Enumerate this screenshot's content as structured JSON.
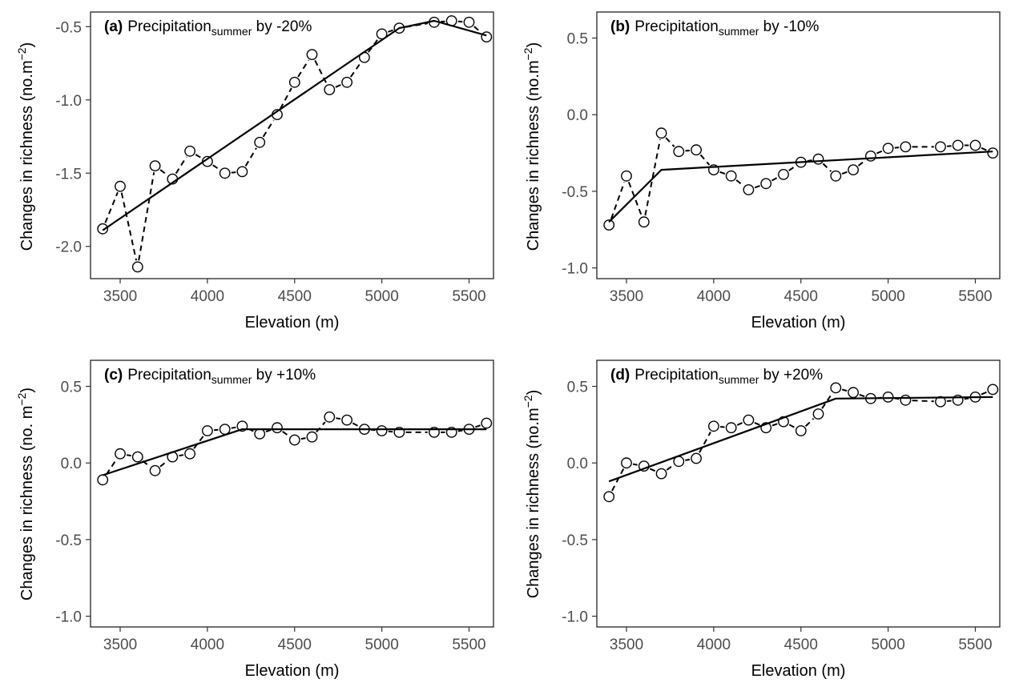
{
  "chart_data": [
    {
      "type": "line",
      "panel_label": "(a)",
      "title_main": "Precipitation",
      "title_sub": "summer",
      "title_rest": " by -20%",
      "xlabel": "Elevation (m)",
      "ylabel_main": "Changes in richness (no.m",
      "ylabel_exp": "−2",
      "ylabel_close": ")",
      "xlim": [
        3330,
        5640
      ],
      "ylim": [
        -2.22,
        -0.4
      ],
      "x_ticks": [
        3500,
        4000,
        4500,
        5000,
        5500
      ],
      "x_tick_labels": [
        "3500",
        "4000",
        "4500",
        "5000",
        "5500"
      ],
      "y_ticks": [
        -2.0,
        -1.5,
        -1.0,
        -0.5
      ],
      "y_tick_labels": [
        "-2.0",
        "-1.5",
        "-1.0",
        "-0.5"
      ],
      "grid": false,
      "series": [
        {
          "style": "points-dashed",
          "x": [
            3400,
            3500,
            3600,
            3700,
            3800,
            3900,
            4000,
            4100,
            4200,
            4300,
            4400,
            4500,
            4600,
            4700,
            4800,
            4900,
            5000,
            5100,
            5300,
            5400,
            5500,
            5600
          ],
          "y": [
            -1.88,
            -1.59,
            -2.14,
            -1.45,
            -1.54,
            -1.35,
            -1.42,
            -1.5,
            -1.49,
            -1.29,
            -1.1,
            -0.88,
            -0.69,
            -0.93,
            -0.88,
            -0.71,
            -0.55,
            -0.51,
            -0.47,
            -0.46,
            -0.47,
            -0.57
          ]
        },
        {
          "style": "solid-fit",
          "x": [
            3400,
            5100,
            5300,
            5600
          ],
          "y": [
            -1.89,
            -0.51,
            -0.46,
            -0.56
          ]
        }
      ]
    },
    {
      "type": "line",
      "panel_label": "(b)",
      "title_main": "Precipitation",
      "title_sub": "summer",
      "title_rest": " by -10%",
      "xlabel": "Elevation (m)",
      "ylabel_main": "Changes in richness (no.m",
      "ylabel_exp": "−2",
      "ylabel_close": ")",
      "xlim": [
        3330,
        5640
      ],
      "ylim": [
        -1.07,
        0.67
      ],
      "x_ticks": [
        3500,
        4000,
        4500,
        5000,
        5500
      ],
      "x_tick_labels": [
        "3500",
        "4000",
        "4500",
        "5000",
        "5500"
      ],
      "y_ticks": [
        -1.0,
        -0.5,
        0.0,
        0.5
      ],
      "y_tick_labels": [
        "-1.0",
        "-0.5",
        "0.0",
        "0.5"
      ],
      "grid": false,
      "series": [
        {
          "style": "points-dashed",
          "x": [
            3400,
            3500,
            3600,
            3700,
            3800,
            3900,
            4000,
            4100,
            4200,
            4300,
            4400,
            4500,
            4600,
            4700,
            4800,
            4900,
            5000,
            5100,
            5300,
            5400,
            5500,
            5600
          ],
          "y": [
            -0.72,
            -0.4,
            -0.7,
            -0.12,
            -0.24,
            -0.23,
            -0.36,
            -0.4,
            -0.49,
            -0.45,
            -0.39,
            -0.31,
            -0.29,
            -0.4,
            -0.36,
            -0.27,
            -0.22,
            -0.21,
            -0.21,
            -0.2,
            -0.2,
            -0.25
          ]
        },
        {
          "style": "solid-fit",
          "x": [
            3400,
            3700,
            5600
          ],
          "y": [
            -0.7,
            -0.36,
            -0.24
          ]
        }
      ]
    },
    {
      "type": "line",
      "panel_label": "(c)",
      "title_main": "Precipitation",
      "title_sub": "summer",
      "title_rest": " by +10%",
      "xlabel": "Elevation (m)",
      "ylabel_main": "Changes in richness (no. m",
      "ylabel_exp": "−2",
      "ylabel_close": ")",
      "xlim": [
        3330,
        5640
      ],
      "ylim": [
        -1.07,
        0.67
      ],
      "x_ticks": [
        3500,
        4000,
        4500,
        5000,
        5500
      ],
      "x_tick_labels": [
        "3500",
        "4000",
        "4500",
        "5000",
        "5500"
      ],
      "y_ticks": [
        -1.0,
        -0.5,
        0.0,
        0.5
      ],
      "y_tick_labels": [
        "-1.0",
        "-0.5",
        "0.0",
        "0.5"
      ],
      "grid": false,
      "series": [
        {
          "style": "points-dashed",
          "x": [
            3400,
            3500,
            3600,
            3700,
            3800,
            3900,
            4000,
            4100,
            4200,
            4300,
            4400,
            4500,
            4600,
            4700,
            4800,
            4900,
            5000,
            5100,
            5300,
            5400,
            5500,
            5600
          ],
          "y": [
            -0.11,
            0.06,
            0.04,
            -0.05,
            0.04,
            0.06,
            0.21,
            0.22,
            0.24,
            0.19,
            0.23,
            0.15,
            0.17,
            0.3,
            0.28,
            0.22,
            0.21,
            0.2,
            0.2,
            0.2,
            0.22,
            0.26
          ]
        },
        {
          "style": "solid-fit",
          "x": [
            3400,
            4200,
            5600
          ],
          "y": [
            -0.08,
            0.22,
            0.22
          ]
        }
      ]
    },
    {
      "type": "line",
      "panel_label": "(d)",
      "title_main": "Precipitation",
      "title_sub": "summer",
      "title_rest": " by +20%",
      "xlabel": "Elevation (m)",
      "ylabel_main": "Changes in richness (no.m",
      "ylabel_exp": "−2",
      "ylabel_close": ")",
      "xlim": [
        3330,
        5640
      ],
      "ylim": [
        -1.07,
        0.67
      ],
      "x_ticks": [
        3500,
        4000,
        4500,
        5000,
        5500
      ],
      "x_tick_labels": [
        "3500",
        "4000",
        "4500",
        "5000",
        "5500"
      ],
      "y_ticks": [
        -1.0,
        -0.5,
        0.0,
        0.5
      ],
      "y_tick_labels": [
        "-1.0",
        "-0.5",
        "0.0",
        "0.5"
      ],
      "grid": false,
      "series": [
        {
          "style": "points-dashed",
          "x": [
            3400,
            3500,
            3600,
            3700,
            3800,
            3900,
            4000,
            4100,
            4200,
            4300,
            4400,
            4500,
            4600,
            4700,
            4800,
            4900,
            5000,
            5100,
            5300,
            5400,
            5500,
            5600
          ],
          "y": [
            -0.22,
            0.0,
            -0.02,
            -0.07,
            0.01,
            0.03,
            0.24,
            0.23,
            0.28,
            0.23,
            0.27,
            0.21,
            0.32,
            0.49,
            0.46,
            0.42,
            0.43,
            0.41,
            0.4,
            0.41,
            0.43,
            0.48
          ]
        },
        {
          "style": "solid-fit",
          "x": [
            3400,
            4700,
            5600
          ],
          "y": [
            -0.12,
            0.42,
            0.43
          ]
        }
      ]
    }
  ]
}
